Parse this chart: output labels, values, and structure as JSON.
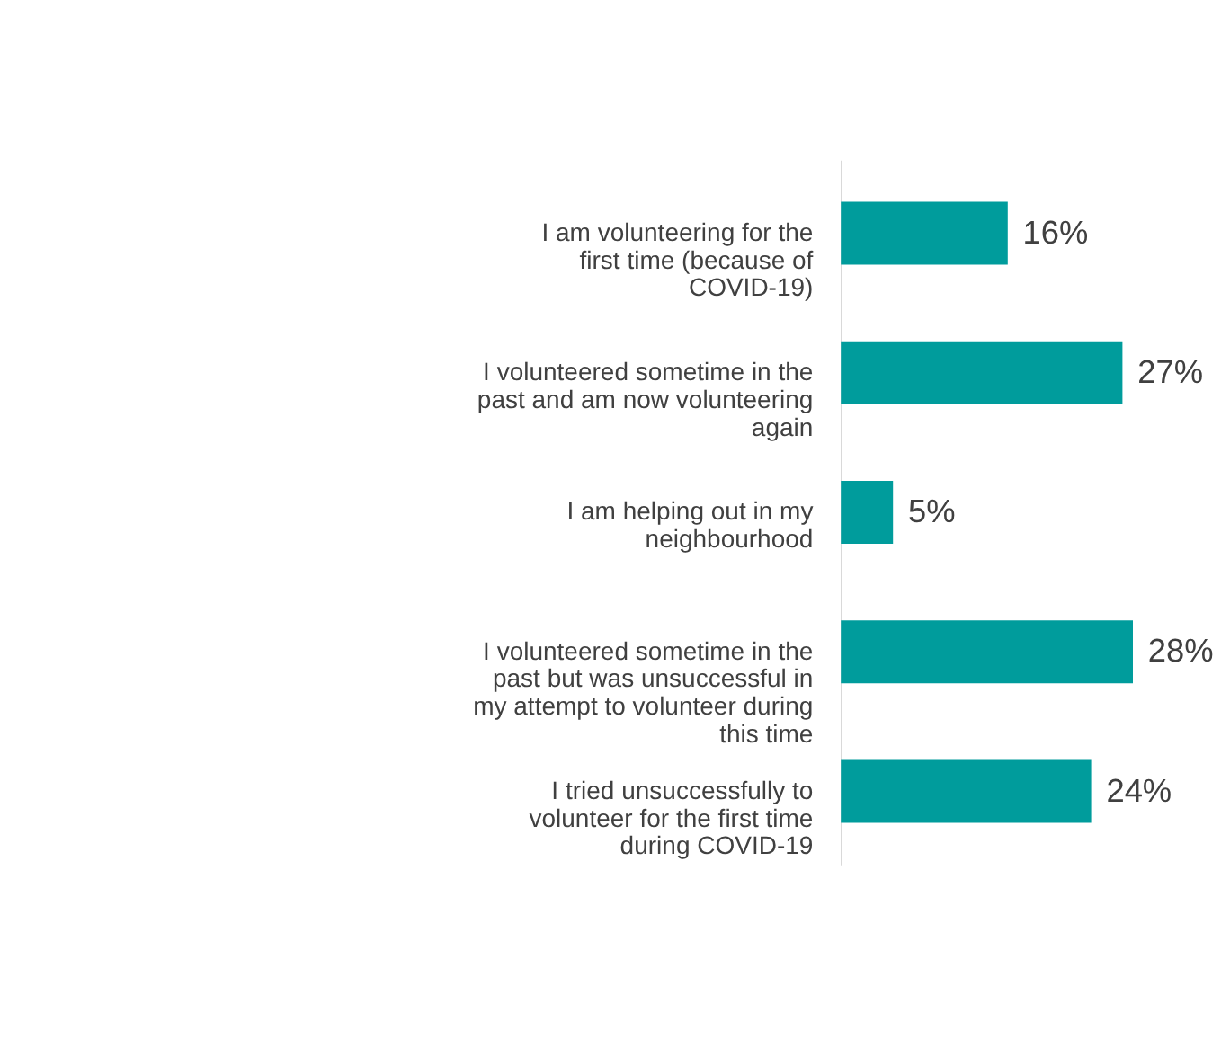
{
  "chart_data": {
    "type": "bar",
    "orientation": "horizontal",
    "color": "#009c9c",
    "value_labels": [
      "16%",
      "27%",
      "5%",
      "28%",
      "24%"
    ],
    "categories": [
      "I am volunteering for the first time (because of COVID-19)",
      "I volunteered sometime in the past and am now volunteering again",
      "I am helping out in my neighbourhood",
      "I volunteered sometime in the past but was unsuccessful in my attempt to volunteer during this time",
      "I tried unsuccessfully to volunteer for the first time during COVID-19"
    ],
    "values": [
      16,
      27,
      5,
      28,
      24
    ]
  }
}
